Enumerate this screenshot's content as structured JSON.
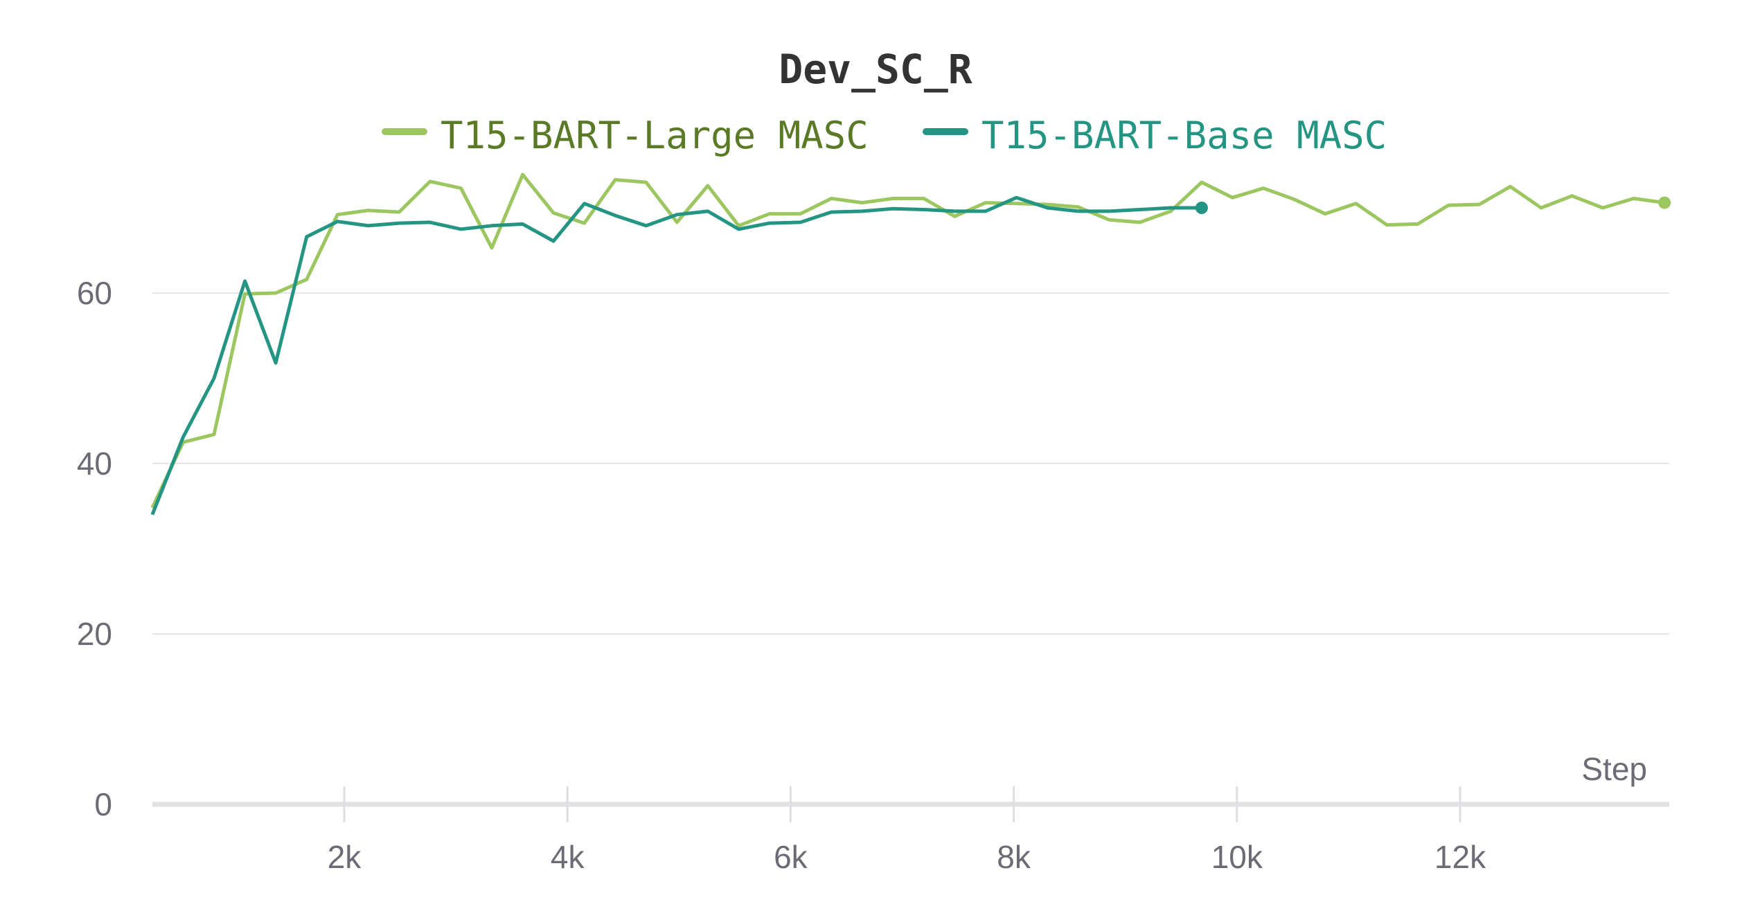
{
  "chart_data": {
    "type": "line",
    "title": "Dev_SC_R",
    "xlabel": "Step",
    "ylabel": "",
    "xlim": [
      0,
      13800
    ],
    "ylim": [
      0,
      75
    ],
    "x_ticks": [
      2000,
      4000,
      6000,
      8000,
      10000,
      12000
    ],
    "x_tick_labels": [
      "2k",
      "4k",
      "6k",
      "8k",
      "10k",
      "12k"
    ],
    "y_ticks": [
      0,
      20,
      40,
      60
    ],
    "y_tick_labels": [
      "0",
      "20",
      "40",
      "60"
    ],
    "grid": "horizontal",
    "legend_position": "top-center",
    "series": [
      {
        "name": "T15-BART-Large MASC",
        "color": "#9cc65f",
        "text_color": "#5a7a25",
        "x": [
          280,
          556,
          833,
          1110,
          1386,
          1663,
          1939,
          2216,
          2492,
          2769,
          3046,
          3322,
          3599,
          3875,
          4152,
          4429,
          4705,
          4982,
          5258,
          5535,
          5811,
          6088,
          6365,
          6641,
          6918,
          7194,
          7471,
          7748,
          8024,
          8301,
          8577,
          8854,
          9130,
          9407,
          9684,
          9960,
          10237,
          10513,
          10790,
          11067,
          11343,
          11620,
          11896,
          12173,
          12450,
          12726,
          13003,
          13279,
          13556,
          13832
        ],
        "y": [
          34.8,
          42.5,
          43.4,
          59.9,
          60.0,
          61.6,
          69.2,
          69.7,
          69.5,
          73.1,
          72.3,
          65.3,
          73.9,
          69.4,
          68.2,
          73.3,
          73.0,
          68.3,
          72.6,
          67.9,
          69.3,
          69.3,
          71.1,
          70.6,
          71.1,
          71.1,
          69.0,
          70.6,
          70.5,
          70.4,
          70.1,
          68.6,
          68.3,
          69.6,
          73.0,
          71.2,
          72.3,
          71.0,
          69.3,
          70.5,
          68.0,
          68.1,
          70.3,
          70.4,
          72.5,
          70.0,
          71.4,
          70.0,
          71.1,
          70.6
        ]
      },
      {
        "name": "T15-BART-Base MASC",
        "color": "#249483",
        "text_color": "#249483",
        "x": [
          280,
          556,
          833,
          1110,
          1386,
          1663,
          1939,
          2216,
          2492,
          2769,
          3046,
          3322,
          3599,
          3875,
          4152,
          4429,
          4705,
          4982,
          5258,
          5535,
          5811,
          6088,
          6365,
          6641,
          6918,
          7194,
          7471,
          7748,
          8024,
          8301,
          8577,
          8854,
          9130,
          9407,
          9684
        ],
        "y": [
          34.0,
          43.1,
          50.0,
          61.4,
          51.8,
          66.6,
          68.4,
          67.9,
          68.2,
          68.3,
          67.5,
          67.9,
          68.1,
          66.1,
          70.5,
          69.1,
          67.9,
          69.2,
          69.6,
          67.5,
          68.2,
          68.3,
          69.5,
          69.6,
          69.9,
          69.8,
          69.6,
          69.6,
          71.2,
          70.0,
          69.6,
          69.6,
          69.8,
          70.0,
          70.0
        ]
      }
    ]
  }
}
